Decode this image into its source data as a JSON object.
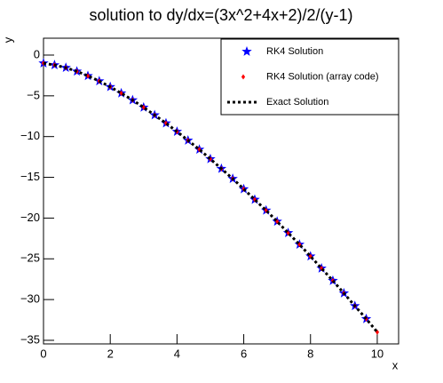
{
  "chart_data": {
    "type": "scatter",
    "title": "solution to dy/dx=(3x^2+4x+2)/2/(y-1)",
    "x_label": "x",
    "y_label": "y",
    "x": [
      0,
      0.33,
      0.67,
      1,
      1.33,
      1.67,
      2,
      2.33,
      2.67,
      3,
      3.33,
      3.67,
      4,
      4.33,
      4.67,
      5,
      5.33,
      5.67,
      6,
      6.33,
      6.67,
      7,
      7.33,
      7.67,
      8,
      8.33,
      8.67,
      9,
      9.33,
      9.67,
      10
    ],
    "series": [
      {
        "name": "RK4 Solution",
        "color": "#0000ff",
        "marker": "star",
        "values": [
          -1,
          -1.22,
          -1.55,
          -2,
          -2.55,
          -3.19,
          -3.9,
          -4.68,
          -5.52,
          -6.42,
          -7.36,
          -8.36,
          -9.39,
          -10.47,
          -11.59,
          -12.75,
          -13.94,
          -15.17,
          -16.44,
          -17.73,
          -19.06,
          -20.42,
          -21.82,
          -23.24,
          -24.69,
          -26.17,
          -27.68,
          -29.22,
          -30.78,
          -32.37,
          null
        ]
      },
      {
        "name": "RK4 Solution (array code)",
        "color": "#ff0000",
        "marker": "diamond",
        "values": [
          -1,
          -1.22,
          -1.55,
          -2,
          -2.55,
          -3.19,
          -3.9,
          -4.68,
          -5.52,
          -6.42,
          -7.36,
          -8.36,
          -9.39,
          -10.47,
          -11.59,
          -12.75,
          -13.94,
          -15.17,
          -16.44,
          -17.73,
          -19.06,
          -20.42,
          -21.82,
          -23.24,
          -24.69,
          -26.17,
          -27.68,
          -29.22,
          -30.78,
          -32.37,
          -33.99
        ]
      },
      {
        "name": "Exact Solution",
        "color": "#000000",
        "marker": "dotted-line",
        "values": [
          -1,
          -1.22,
          -1.55,
          -2,
          -2.55,
          -3.19,
          -3.9,
          -4.68,
          -5.52,
          -6.42,
          -7.36,
          -8.36,
          -9.39,
          -10.47,
          -11.59,
          -12.75,
          -13.94,
          -15.17,
          -16.44,
          -17.73,
          -19.06,
          -20.42,
          -21.82,
          -23.24,
          -24.69,
          -26.17,
          -27.68,
          -29.22,
          -30.78,
          -32.37,
          -33.99
        ]
      }
    ],
    "xlim": [
      0,
      10.64
    ],
    "ylim": [
      -35.44,
      2.07
    ],
    "xticks": [
      0,
      2,
      4,
      6,
      8,
      10
    ],
    "yticks": [
      0,
      {
        "value": -5,
        "label": "−5"
      },
      {
        "value": -10,
        "label": "−10"
      },
      {
        "value": -15,
        "label": "−15"
      },
      {
        "value": -20,
        "label": "−20"
      },
      {
        "value": -25,
        "label": "−25"
      },
      {
        "value": -30,
        "label": "−30"
      },
      {
        "value": -35,
        "label": "−35"
      }
    ],
    "legend": "top-right"
  }
}
